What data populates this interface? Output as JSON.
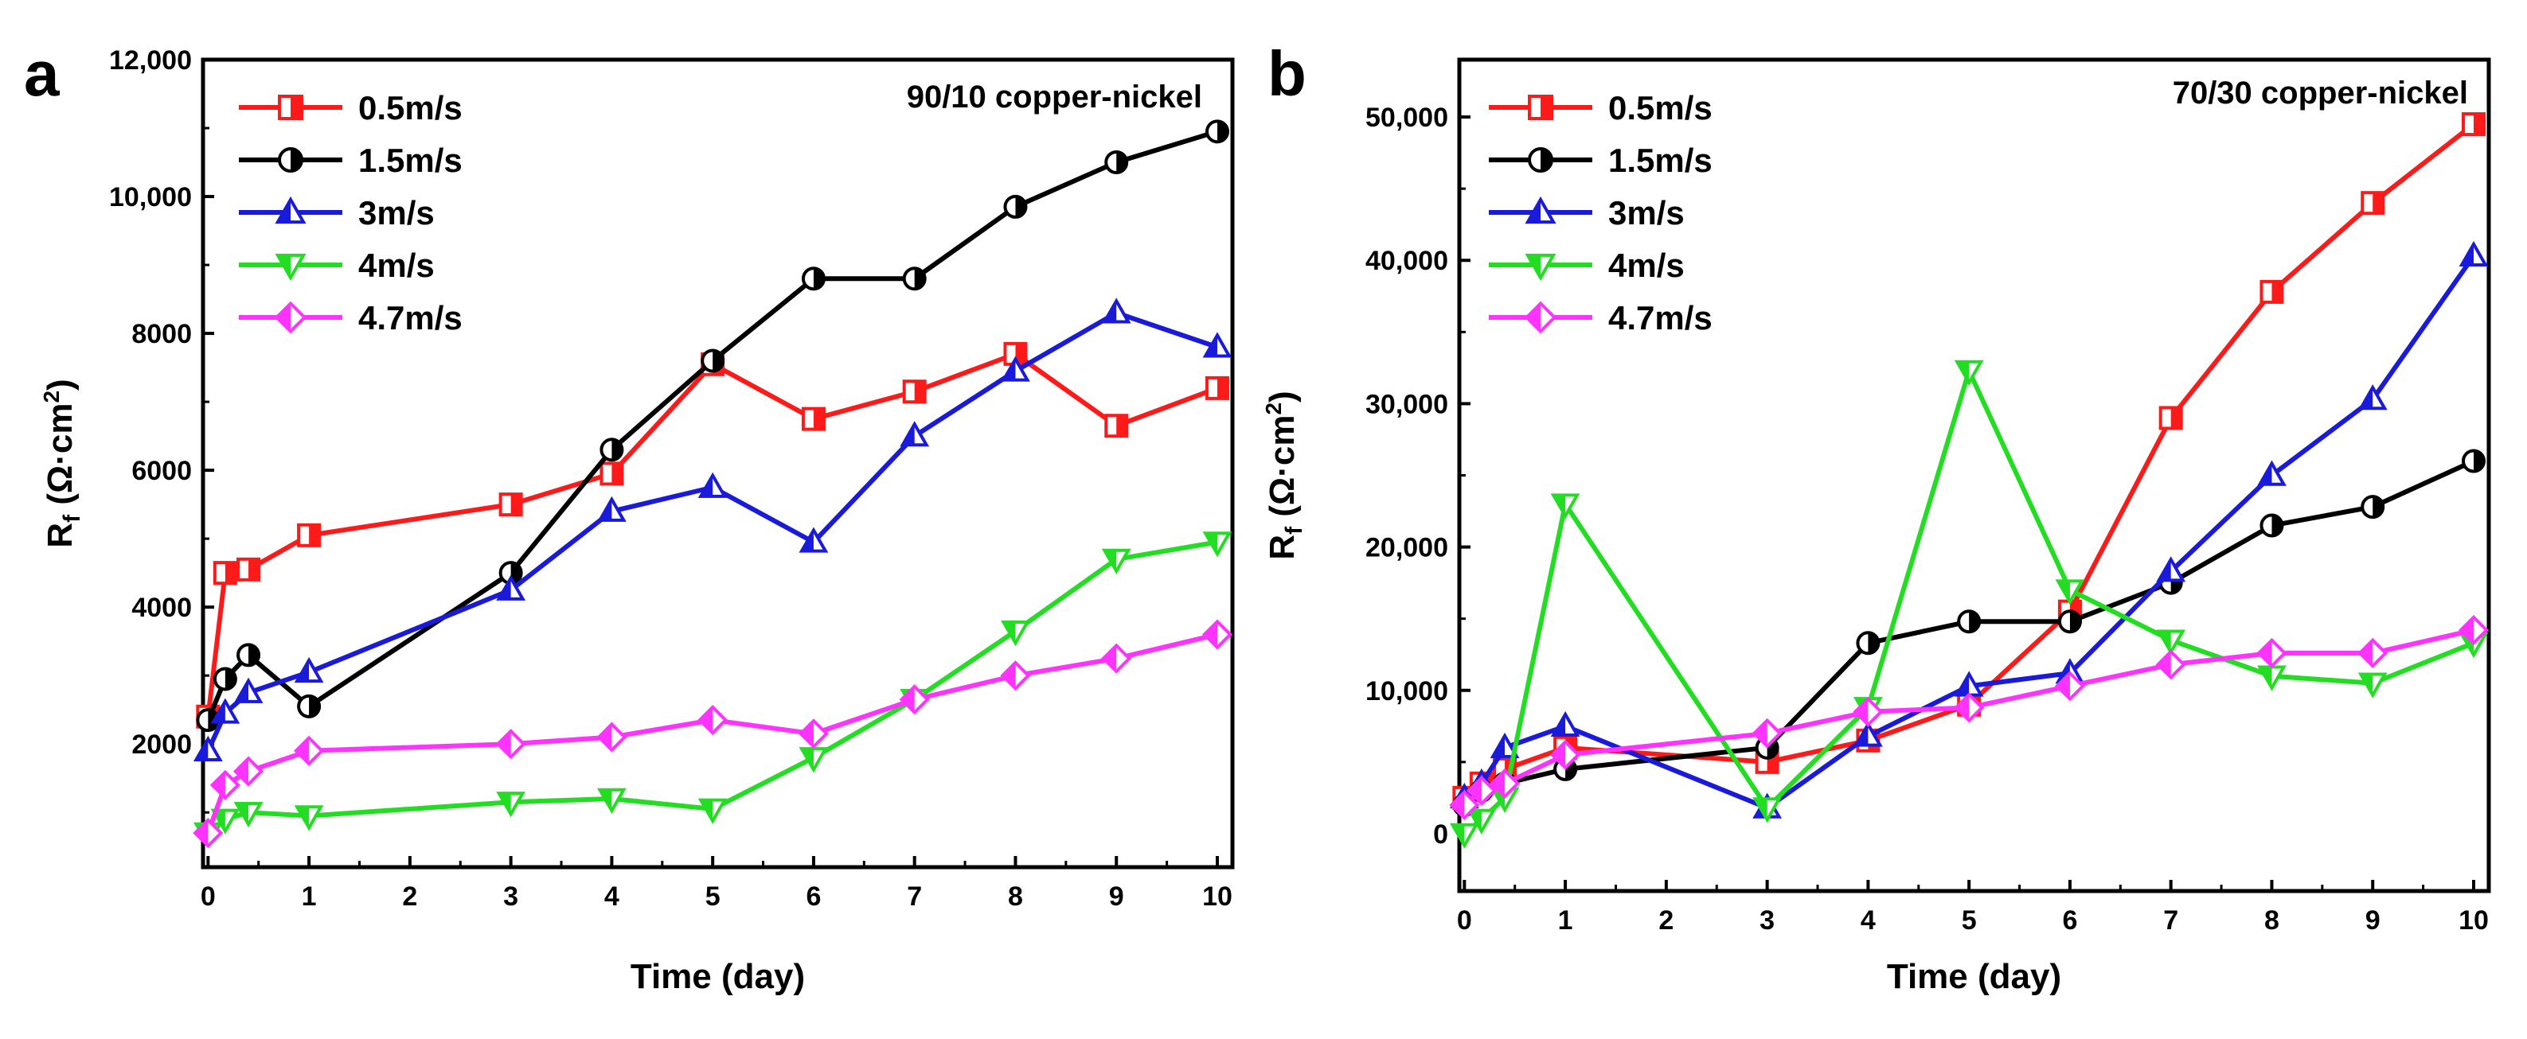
{
  "chart_data": [
    {
      "type": "line",
      "panel_label": "a",
      "title": "90/10 copper-nickel",
      "xlabel": "Time (day)",
      "ylabel_main": "R",
      "ylabel_sub": "f",
      "ylabel_unit": " (Ω·cm",
      "ylabel_sup": "2",
      "ylabel_close": ")",
      "xlim": [
        -0.05,
        10.15
      ],
      "ylim": [
        200,
        12000
      ],
      "xticks": [
        0,
        1,
        2,
        3,
        4,
        5,
        6,
        7,
        8,
        9,
        10
      ],
      "xtick_labels": [
        "0",
        "1",
        "2",
        "3",
        "4",
        "5",
        "6",
        "7",
        "8",
        "9",
        "10"
      ],
      "yticks": [
        2000,
        4000,
        6000,
        8000,
        10000,
        12000
      ],
      "ytick_labels": [
        "2000",
        "4000",
        "6000",
        "8000",
        "10,000",
        "12,000"
      ],
      "legend": "top-left",
      "series": [
        {
          "name": "0.5m/s",
          "color": "#ff1a1a",
          "marker": "square-half",
          "x": [
            0,
            0.17,
            0.4,
            1,
            3,
            4,
            5,
            6,
            7,
            8,
            9,
            10
          ],
          "y": [
            2400,
            4500,
            4550,
            5050,
            5500,
            5950,
            7550,
            6750,
            7150,
            7700,
            6650,
            7200
          ]
        },
        {
          "name": "1.5m/s",
          "color": "#000000",
          "marker": "circle-half",
          "x": [
            0,
            0.17,
            0.4,
            1,
            3,
            4,
            5,
            6,
            7,
            8,
            9,
            10
          ],
          "y": [
            2350,
            2950,
            3300,
            2550,
            4500,
            6300,
            7600,
            8800,
            8800,
            9850,
            10500,
            10950
          ]
        },
        {
          "name": "3m/s",
          "color": "#1a1adb",
          "marker": "triangle-up-half",
          "x": [
            0,
            0.17,
            0.4,
            1,
            3,
            4,
            5,
            6,
            7,
            8,
            9,
            10
          ],
          "y": [
            1900,
            2450,
            2750,
            3050,
            4250,
            5400,
            5750,
            4950,
            6500,
            7450,
            8300,
            7800
          ]
        },
        {
          "name": "4m/s",
          "color": "#22dd22",
          "marker": "triangle-down-half",
          "x": [
            0,
            0.17,
            0.4,
            1,
            3,
            4,
            5,
            6,
            7,
            8,
            9,
            10
          ],
          "y": [
            700,
            900,
            1000,
            950,
            1150,
            1200,
            1050,
            1800,
            2650,
            3650,
            4700,
            4950
          ]
        },
        {
          "name": "4.7m/s",
          "color": "#ff33ff",
          "marker": "diamond-half",
          "x": [
            0,
            0.17,
            0.4,
            1,
            3,
            4,
            5,
            6,
            7,
            8,
            9,
            10
          ],
          "y": [
            700,
            1400,
            1600,
            1900,
            2000,
            2100,
            2350,
            2150,
            2650,
            3000,
            3250,
            3600
          ]
        }
      ]
    },
    {
      "type": "line",
      "panel_label": "b",
      "title": "70/30 copper-nickel",
      "xlabel": "Time (day)",
      "ylabel_main": "R",
      "ylabel_sub": "f",
      "ylabel_unit": " (Ω·cm",
      "ylabel_sup": "2",
      "ylabel_close": ")",
      "xlim": [
        -0.05,
        10.15
      ],
      "ylim": [
        -4000,
        54000
      ],
      "xticks": [
        0,
        1,
        2,
        3,
        4,
        5,
        6,
        7,
        8,
        9,
        10
      ],
      "xtick_labels": [
        "0",
        "1",
        "2",
        "3",
        "4",
        "5",
        "6",
        "7",
        "8",
        "9",
        "10"
      ],
      "yticks": [
        0,
        10000,
        20000,
        30000,
        40000,
        50000
      ],
      "ytick_labels": [
        "0",
        "10,000",
        "20,000",
        "30,000",
        "40,000",
        "50,000"
      ],
      "legend": "top-left",
      "series": [
        {
          "name": "0.5m/s",
          "color": "#ff1a1a",
          "marker": "square-half",
          "x": [
            0,
            0.17,
            0.4,
            1,
            3,
            4,
            5,
            6,
            7,
            8,
            9,
            10
          ],
          "y": [
            2500,
            3500,
            4500,
            6000,
            5000,
            6500,
            9000,
            15500,
            29000,
            37800,
            44000,
            49500
          ]
        },
        {
          "name": "1.5m/s",
          "color": "#000000",
          "marker": "circle-half",
          "x": [
            0,
            0.17,
            0.4,
            1,
            3,
            4,
            5,
            6,
            7,
            8,
            9,
            10
          ],
          "y": [
            2000,
            3000,
            3500,
            4500,
            6000,
            13300,
            14800,
            14800,
            17500,
            21500,
            22800,
            26000
          ]
        },
        {
          "name": "3m/s",
          "color": "#1a1adb",
          "marker": "triangle-up-half",
          "x": [
            0,
            0.17,
            0.4,
            1,
            3,
            4,
            5,
            6,
            7,
            8,
            9,
            10
          ],
          "y": [
            2500,
            3500,
            6000,
            7500,
            1800,
            6800,
            10300,
            11200,
            18300,
            25000,
            30300,
            40300
          ]
        },
        {
          "name": "4m/s",
          "color": "#22dd22",
          "marker": "triangle-down-half",
          "x": [
            0,
            0.17,
            0.4,
            1,
            3,
            4,
            5,
            6,
            7,
            8,
            9,
            10
          ],
          "y": [
            0,
            1000,
            2500,
            23000,
            1800,
            8800,
            32300,
            17000,
            13500,
            11000,
            10500,
            13300
          ]
        },
        {
          "name": "4.7m/s",
          "color": "#ff33ff",
          "marker": "diamond-half",
          "x": [
            0,
            0.17,
            0.4,
            1,
            3,
            4,
            5,
            6,
            7,
            8,
            9,
            10
          ],
          "y": [
            2000,
            3000,
            3500,
            5500,
            7000,
            8500,
            8800,
            10300,
            11800,
            12600,
            12600,
            14200
          ]
        }
      ]
    }
  ]
}
